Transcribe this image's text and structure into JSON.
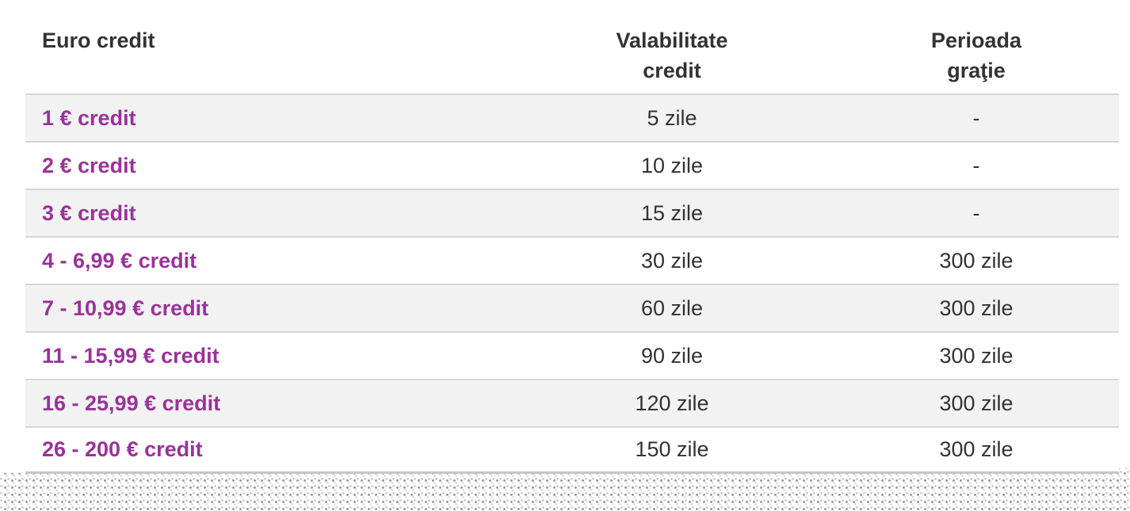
{
  "table": {
    "columns": [
      {
        "label": "Euro credit"
      },
      {
        "label": "Valabilitate credit"
      },
      {
        "label": "Perioada graţie"
      }
    ],
    "rows": [
      {
        "credit": "1 € credit",
        "validity": "5 zile",
        "grace": "-"
      },
      {
        "credit": "2 € credit",
        "validity": "10 zile",
        "grace": "-"
      },
      {
        "credit": "3 € credit",
        "validity": "15 zile",
        "grace": "-"
      },
      {
        "credit": "4 - 6,99 € credit",
        "validity": "30 zile",
        "grace": "300 zile"
      },
      {
        "credit": "7 - 10,99 € credit",
        "validity": "60 zile",
        "grace": "300 zile"
      },
      {
        "credit": "11 - 15,99 € credit",
        "validity": "90 zile",
        "grace": "300 zile"
      },
      {
        "credit": "16 - 25,99 € credit",
        "validity": "120 zile",
        "grace": "300 zile"
      },
      {
        "credit": "26 - 200 € credit",
        "validity": "150 zile",
        "grace": "300 zile"
      }
    ]
  },
  "colors": {
    "accent_purple": "#993399",
    "text": "#333333",
    "row_alt_bg": "#f2f2f2",
    "row_border": "#d7d7d7",
    "bottom_border": "#c6c6c6"
  }
}
